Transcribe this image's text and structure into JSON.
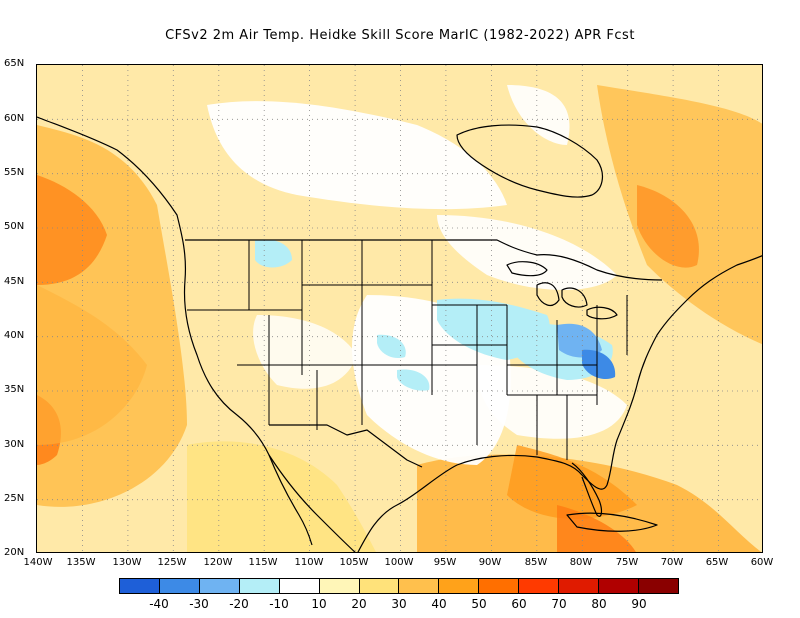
{
  "title": "CFSv2  2m Air Temp. Heidke Skill Score MarIC (1982-2022) APR Fcst",
  "map": {
    "lat_labels": [
      "65N",
      "60N",
      "55N",
      "50N",
      "45N",
      "40N",
      "35N",
      "30N",
      "25N",
      "20N"
    ],
    "lon_labels": [
      "140W",
      "135W",
      "130W",
      "125W",
      "120W",
      "115W",
      "110W",
      "105W",
      "100W",
      "95W",
      "90W",
      "85W",
      "80W",
      "75W",
      "70W",
      "65W",
      "60W"
    ],
    "extent": {
      "lon": [
        -140,
        -60
      ],
      "lat": [
        20,
        65
      ]
    },
    "grid": "dotted"
  },
  "legend": {
    "colors": [
      "#1e5fd8",
      "#3d8ae6",
      "#6fb3f2",
      "#b4eef7",
      "#ffffff",
      "#fff6b8",
      "#ffe27a",
      "#ffc04d",
      "#ffa21a",
      "#ff6f00",
      "#ff3a00",
      "#e01b00",
      "#b00000",
      "#8a0000"
    ],
    "tick_labels": [
      "-40",
      "-30",
      "-20",
      "-10",
      "10",
      "20",
      "30",
      "40",
      "50",
      "60",
      "70",
      "80",
      "90"
    ]
  }
}
